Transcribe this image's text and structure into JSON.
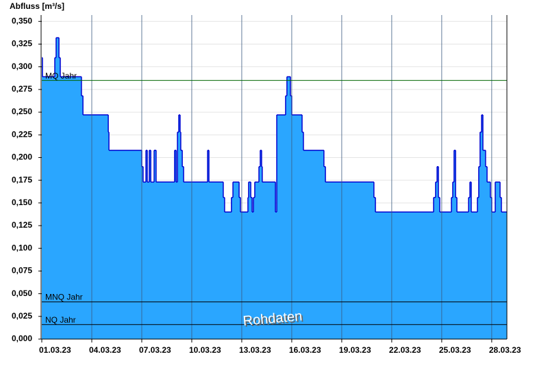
{
  "chart_data": {
    "type": "step-area",
    "title": "Abfluss [m³/s]",
    "annotation": "Rohdaten",
    "x": [
      0,
      0.04,
      0.78,
      0.86,
      1.03,
      1.11,
      2.38,
      2.47,
      3.99,
      4.03,
      6.0,
      6.08,
      6.25,
      6.33,
      6.45,
      6.54,
      6.74,
      6.86,
      7.97,
      8.06,
      8.14,
      8.22,
      8.3,
      8.34,
      8.43,
      8.51,
      9.95,
      10.03,
      10.89,
      10.97,
      11.38,
      11.47,
      11.84,
      11.92,
      12.37,
      12.41,
      12.54,
      12.62,
      12.7,
      12.78,
      13.03,
      13.11,
      13.19,
      13.23,
      14.02,
      14.1,
      14.63,
      14.71,
      14.92,
      15.0,
      15.62,
      15.7,
      16.93,
      17.02,
      19.93,
      20.02,
      23.51,
      23.63,
      23.72,
      23.8,
      23.88,
      24.58,
      24.66,
      24.74,
      24.83,
      24.91,
      25.61,
      25.69,
      25.77,
      26.14,
      26.22,
      26.3,
      26.39,
      26.47,
      26.63,
      26.72,
      26.92,
      27.0,
      27.21,
      27.5,
      27.58
    ],
    "values": [
      0.31,
      0.289,
      0.31,
      0.332,
      0.31,
      0.289,
      0.268,
      0.247,
      0.228,
      0.208,
      0.19,
      0.173,
      0.208,
      0.173,
      0.208,
      0.173,
      0.208,
      0.173,
      0.208,
      0.173,
      0.228,
      0.247,
      0.228,
      0.208,
      0.19,
      0.173,
      0.208,
      0.173,
      0.156,
      0.14,
      0.156,
      0.173,
      0.156,
      0.14,
      0.156,
      0.173,
      0.156,
      0.14,
      0.156,
      0.173,
      0.19,
      0.208,
      0.19,
      0.173,
      0.14,
      0.247,
      0.268,
      0.289,
      0.268,
      0.247,
      0.228,
      0.208,
      0.19,
      0.173,
      0.156,
      0.14,
      0.156,
      0.173,
      0.19,
      0.156,
      0.14,
      0.156,
      0.173,
      0.208,
      0.156,
      0.14,
      0.156,
      0.173,
      0.14,
      0.156,
      0.19,
      0.228,
      0.247,
      0.208,
      0.19,
      0.173,
      0.156,
      0.14,
      0.173,
      0.156,
      0.14
    ],
    "fill": "#2aa6ff",
    "color": "#0000d0",
    "xlim": [
      0,
      27.91
    ],
    "xticks": [
      {
        "value": 0,
        "label": "01.03.23"
      },
      {
        "value": 3,
        "label": "04.03.23"
      },
      {
        "value": 6,
        "label": "07.03.23"
      },
      {
        "value": 9,
        "label": "10.03.23"
      },
      {
        "value": 12,
        "label": "13.03.23"
      },
      {
        "value": 15,
        "label": "16.03.23"
      },
      {
        "value": 18,
        "label": "19.03.23"
      },
      {
        "value": 21,
        "label": "22.03.23"
      },
      {
        "value": 24,
        "label": "25.03.23"
      },
      {
        "value": 27,
        "label": "28.03.23"
      }
    ],
    "ylim": [
      0,
      0.357
    ],
    "yticks": [
      {
        "value": 0,
        "label": "0,000"
      },
      {
        "value": 0.025,
        "label": "0,025"
      },
      {
        "value": 0.05,
        "label": "0,050"
      },
      {
        "value": 0.075,
        "label": "0,075"
      },
      {
        "value": 0.1,
        "label": "0,100"
      },
      {
        "value": 0.125,
        "label": "0,125"
      },
      {
        "value": 0.15,
        "label": "0,150"
      },
      {
        "value": 0.175,
        "label": "0,175"
      },
      {
        "value": 0.2,
        "label": "0,200"
      },
      {
        "value": 0.225,
        "label": "0,225"
      },
      {
        "value": 0.25,
        "label": "0,250"
      },
      {
        "value": 0.275,
        "label": "0,275"
      },
      {
        "value": 0.3,
        "label": "0,300"
      },
      {
        "value": 0.325,
        "label": "0,325"
      },
      {
        "value": 0.35,
        "label": "0,350"
      }
    ],
    "grid": true,
    "reference_lines": [
      {
        "label": "MQ Jahr",
        "value": 0.285,
        "color": "#006400"
      },
      {
        "label": "MNQ Jahr",
        "value": 0.041,
        "color": "#000000"
      },
      {
        "label": "NQ Jahr",
        "value": 0.016,
        "color": "#000000"
      }
    ]
  }
}
